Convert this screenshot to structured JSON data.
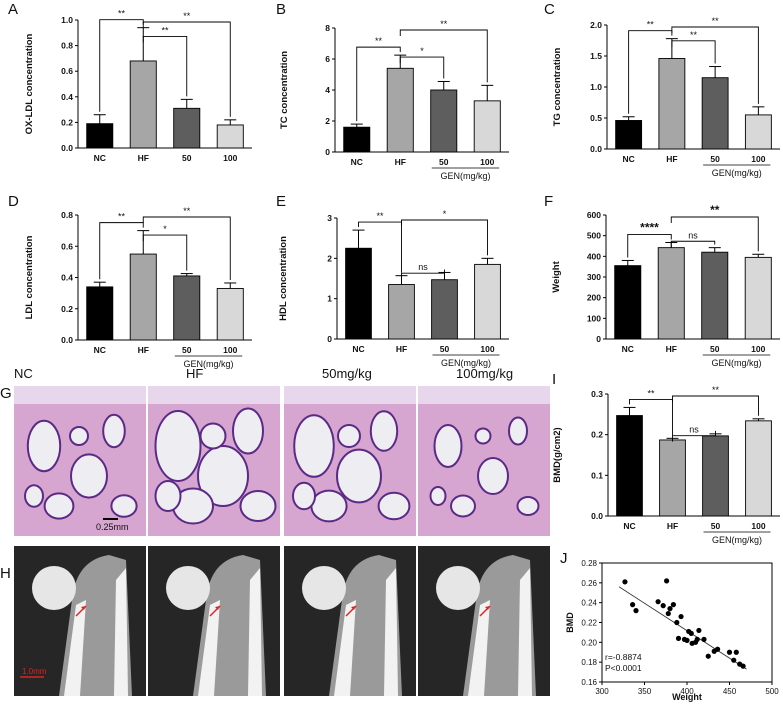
{
  "colors": {
    "NC": "#000000",
    "HF": "#a6a6a6",
    "G50": "#5e5e5e",
    "G100": "#d8d8d8"
  },
  "xaxis_group_label": "GEN(mg/kg)",
  "panels": [
    {
      "letter": "A",
      "ylabel": "OX-LDL concentration",
      "ylim": [
        0,
        1.0
      ],
      "yticks": [
        "0.0",
        "0.2",
        "0.4",
        "0.6",
        "0.8",
        "1.0"
      ],
      "categories": [
        "NC",
        "HF",
        "50",
        "100"
      ],
      "values": [
        0.19,
        0.68,
        0.31,
        0.18
      ],
      "errors": [
        0.07,
        0.26,
        0.07,
        0.04
      ],
      "show_gen": false,
      "sig": [
        {
          "from": 0,
          "to": 1,
          "label": "**"
        },
        {
          "from": 1,
          "to": 2,
          "label": "**"
        },
        {
          "from": 1,
          "to": 3,
          "label": "**"
        }
      ]
    },
    {
      "letter": "B",
      "ylabel": "TC concentration",
      "ylim": [
        0,
        8
      ],
      "yticks": [
        "0",
        "2",
        "4",
        "6",
        "8"
      ],
      "categories": [
        "NC",
        "HF",
        "50",
        "100"
      ],
      "values": [
        1.6,
        5.4,
        4.0,
        3.3
      ],
      "errors": [
        0.2,
        0.85,
        0.55,
        1.0
      ],
      "show_gen": true,
      "sig": [
        {
          "from": 0,
          "to": 1,
          "label": "**"
        },
        {
          "from": 1,
          "to": 2,
          "label": "*"
        },
        {
          "from": 1,
          "to": 3,
          "label": "**"
        }
      ]
    },
    {
      "letter": "C",
      "ylabel": "TG concentration",
      "ylim": [
        0,
        2.0
      ],
      "yticks": [
        "0.0",
        "0.5",
        "1.0",
        "1.5",
        "2.0"
      ],
      "categories": [
        "NC",
        "HF",
        "50",
        "100"
      ],
      "values": [
        0.46,
        1.46,
        1.15,
        0.55
      ],
      "errors": [
        0.06,
        0.32,
        0.18,
        0.13
      ],
      "show_gen": true,
      "sig": [
        {
          "from": 0,
          "to": 1,
          "label": "**"
        },
        {
          "from": 1,
          "to": 2,
          "label": "**"
        },
        {
          "from": 1,
          "to": 3,
          "label": "**"
        }
      ]
    },
    {
      "letter": "D",
      "ylabel": "LDL concentration",
      "ylim": [
        0,
        0.8
      ],
      "yticks": [
        "0.0",
        "0.2",
        "0.4",
        "0.6",
        "0.8"
      ],
      "categories": [
        "NC",
        "HF",
        "50",
        "100"
      ],
      "values": [
        0.34,
        0.55,
        0.41,
        0.33
      ],
      "errors": [
        0.03,
        0.15,
        0.015,
        0.035
      ],
      "show_gen": true,
      "sig": [
        {
          "from": 0,
          "to": 1,
          "label": "**"
        },
        {
          "from": 1,
          "to": 2,
          "label": "*"
        },
        {
          "from": 1,
          "to": 3,
          "label": "**"
        }
      ]
    },
    {
      "letter": "E",
      "ylabel": "HDL concentration",
      "ylim": [
        0,
        3
      ],
      "yticks": [
        "0",
        "1",
        "2",
        "3"
      ],
      "categories": [
        "NC",
        "HF",
        "50",
        "100"
      ],
      "values": [
        2.25,
        1.35,
        1.47,
        1.85
      ],
      "errors": [
        0.45,
        0.22,
        0.18,
        0.15
      ],
      "show_gen": true,
      "sig": [
        {
          "from": 0,
          "to": 1,
          "label": "**"
        },
        {
          "from": 1,
          "to": 2,
          "label": "ns"
        },
        {
          "from": 1,
          "to": 3,
          "label": "*"
        }
      ]
    },
    {
      "letter": "F",
      "ylabel": "Weight",
      "ylim": [
        0,
        600
      ],
      "yticks": [
        "0",
        "100",
        "200",
        "300",
        "400",
        "500",
        "600"
      ],
      "categories": [
        "NC",
        "HF",
        "50",
        "100"
      ],
      "values": [
        355,
        442,
        420,
        395
      ],
      "errors": [
        25,
        25,
        22,
        15
      ],
      "show_gen": true,
      "sig": [
        {
          "from": 0,
          "to": 1,
          "label": "****"
        },
        {
          "from": 1,
          "to": 2,
          "label": "ns"
        },
        {
          "from": 1,
          "to": 3,
          "label": "**"
        }
      ]
    },
    {
      "letter": "I",
      "ylabel": "BMD(g/cm2)",
      "ylim": [
        0,
        0.3
      ],
      "yticks": [
        "0.0",
        "0.1",
        "0.2",
        "0.3"
      ],
      "categories": [
        "NC",
        "HF",
        "50",
        "100"
      ],
      "values": [
        0.247,
        0.187,
        0.197,
        0.234
      ],
      "errors": [
        0.02,
        0.004,
        0.005,
        0.005
      ],
      "show_gen": true,
      "sig": [
        {
          "from": 0,
          "to": 1,
          "label": "**"
        },
        {
          "from": 1,
          "to": 2,
          "label": "ns"
        },
        {
          "from": 1,
          "to": 3,
          "label": "**"
        }
      ]
    }
  ],
  "image_panels": {
    "G": {
      "letter": "G",
      "labels": [
        "NC",
        "HF",
        "50mg/kg",
        "100mg/kg"
      ],
      "scale_text": "0.25mm"
    },
    "H": {
      "letter": "H",
      "scale_text": "1.0mm"
    }
  },
  "chart_data": {
    "type": "scatter",
    "letter": "J",
    "xlabel": "Weight",
    "ylabel": "BMD",
    "xlim": [
      300,
      500
    ],
    "ylim": [
      0.16,
      0.28
    ],
    "xticks": [
      "300",
      "350",
      "400",
      "450",
      "500"
    ],
    "yticks": [
      "0.16",
      "0.18",
      "0.20",
      "0.22",
      "0.24",
      "0.26",
      "0.28"
    ],
    "annotations": [
      "r=-0.8874",
      "P<0.0001"
    ],
    "points": [
      [
        327,
        0.261
      ],
      [
        336,
        0.238
      ],
      [
        340,
        0.232
      ],
      [
        366,
        0.241
      ],
      [
        372,
        0.237
      ],
      [
        376,
        0.262
      ],
      [
        378,
        0.229
      ],
      [
        380,
        0.234
      ],
      [
        384,
        0.238
      ],
      [
        388,
        0.22
      ],
      [
        390,
        0.204
      ],
      [
        393,
        0.226
      ],
      [
        397,
        0.203
      ],
      [
        400,
        0.202
      ],
      [
        402,
        0.211
      ],
      [
        405,
        0.209
      ],
      [
        406,
        0.199
      ],
      [
        410,
        0.2
      ],
      [
        412,
        0.203
      ],
      [
        414,
        0.212
      ],
      [
        420,
        0.203
      ],
      [
        425,
        0.186
      ],
      [
        432,
        0.191
      ],
      [
        436,
        0.193
      ],
      [
        450,
        0.19
      ],
      [
        455,
        0.182
      ],
      [
        458,
        0.19
      ],
      [
        462,
        0.178
      ],
      [
        466,
        0.176
      ]
    ],
    "fit": [
      [
        320,
        0.256
      ],
      [
        470,
        0.173
      ]
    ]
  }
}
